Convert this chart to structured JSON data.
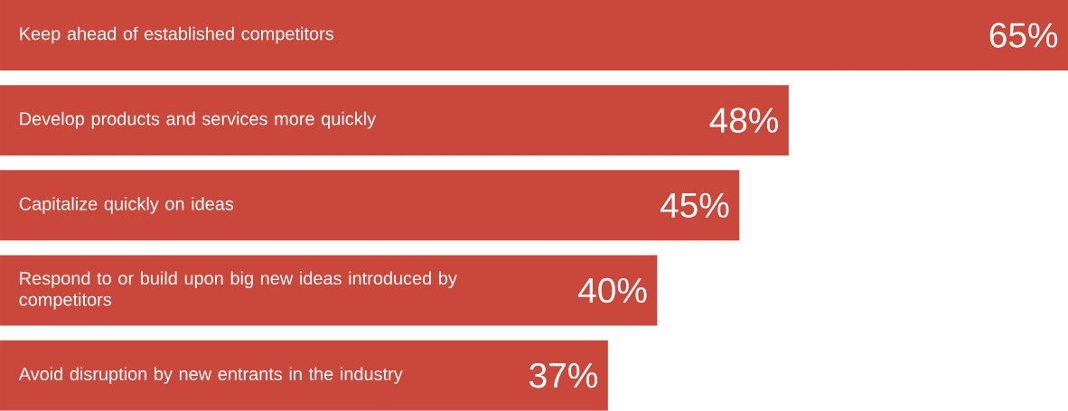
{
  "chart_data": {
    "type": "bar",
    "orientation": "horizontal",
    "categories": [
      "Keep ahead of established competitors",
      "Develop products and services more quickly",
      "Capitalize quickly on ideas",
      "Respond to or build upon big new ideas introduced by competitors",
      "Avoid disruption by new entrants in the industry"
    ],
    "values": [
      65,
      48,
      45,
      40,
      37
    ],
    "value_labels": [
      "65%",
      "48%",
      "45%",
      "40%",
      "37%"
    ],
    "color": "#c9473b"
  }
}
